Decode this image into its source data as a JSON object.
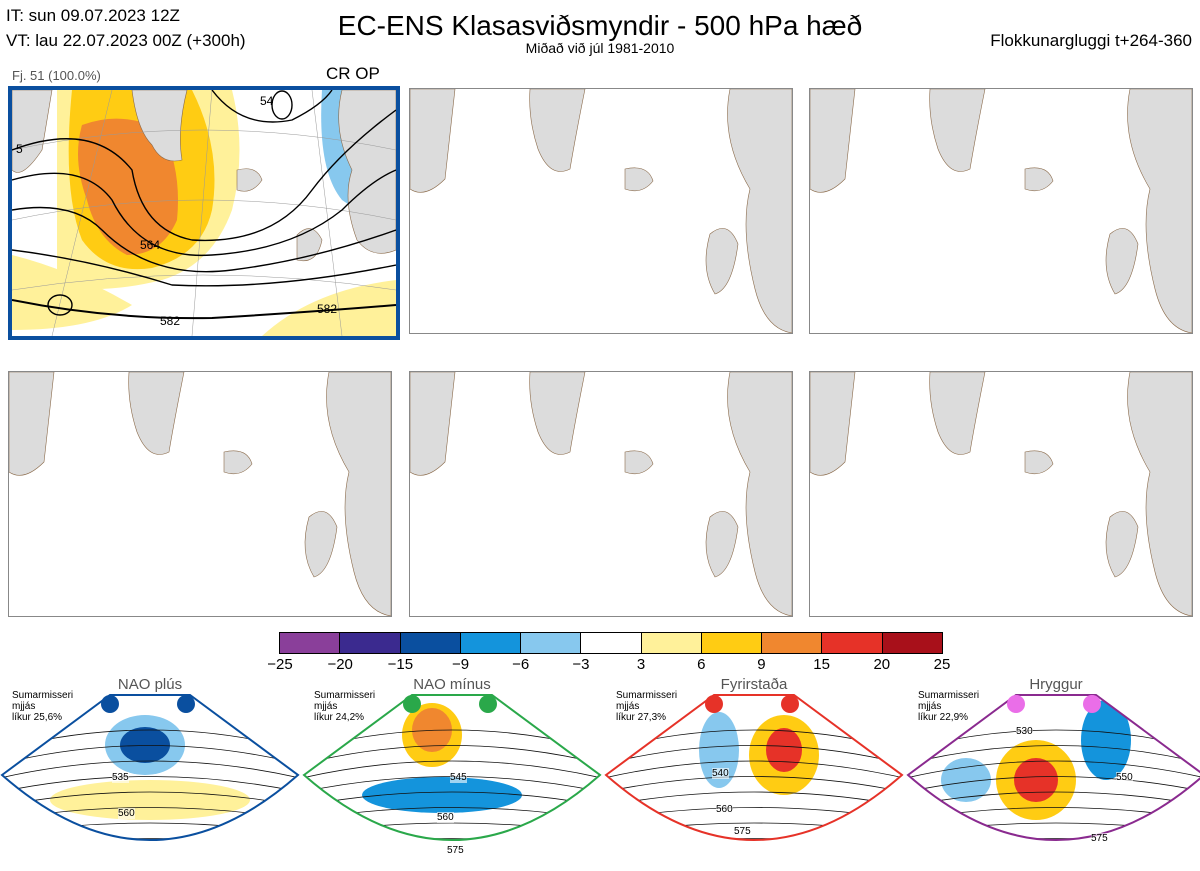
{
  "header": {
    "init_time": "IT: sun 09.07.2023 12Z",
    "valid_time": "VT: lau 22.07.2023 00Z  (+300h)",
    "title": "EC-ENS Klasasviðsmyndir - 500 hPa hæð",
    "subtitle": "Miðað við júl 1981-2010",
    "window": "Flokkunargluggi t+264-360"
  },
  "panel1": {
    "members": "Fj. 51 (100.0%)",
    "tags": "CR OP",
    "contour_labels": [
      "564",
      "582",
      "582",
      "54",
      "5"
    ]
  },
  "colorbar": {
    "colors": [
      "#8a3f9a",
      "#3b2a8f",
      "#0a4f9f",
      "#1494dc",
      "#87c8ee",
      "#ffffff",
      "#fff19a",
      "#ffcc13",
      "#f0872f",
      "#e63228",
      "#a8101a"
    ],
    "ticks": [
      "−25",
      "−20",
      "−15",
      "−9",
      "−6",
      "−3",
      "3",
      "6",
      "9",
      "15",
      "20",
      "25"
    ]
  },
  "clusters": [
    {
      "name": "NAO plús",
      "season": "Sumarmisseri",
      "info": "mjjás",
      "prob": "líkur 25,6%",
      "border": "#0a4f9f",
      "dot": "#0a4f9f",
      "labels": [
        "535",
        "560"
      ]
    },
    {
      "name": "NAO mínus",
      "season": "Sumarmisseri",
      "info": "mjjás",
      "prob": "líkur 24,2%",
      "border": "#2aa84a",
      "dot": "#2aa84a",
      "labels": [
        "545",
        "560",
        "575"
      ]
    },
    {
      "name": "Fyrirstaða",
      "season": "Sumarmisseri",
      "info": "mjjás",
      "prob": "líkur 27,3%",
      "border": "#e63228",
      "dot": "#e63228",
      "labels": [
        "540",
        "560",
        "575"
      ]
    },
    {
      "name": "Hryggur",
      "season": "Sumarmisseri",
      "info": "mjjás",
      "prob": "líkur 22,9%",
      "border": "#8a2a8f",
      "dot": "#ea6ee8",
      "labels": [
        "530",
        "550",
        "575"
      ]
    }
  ]
}
